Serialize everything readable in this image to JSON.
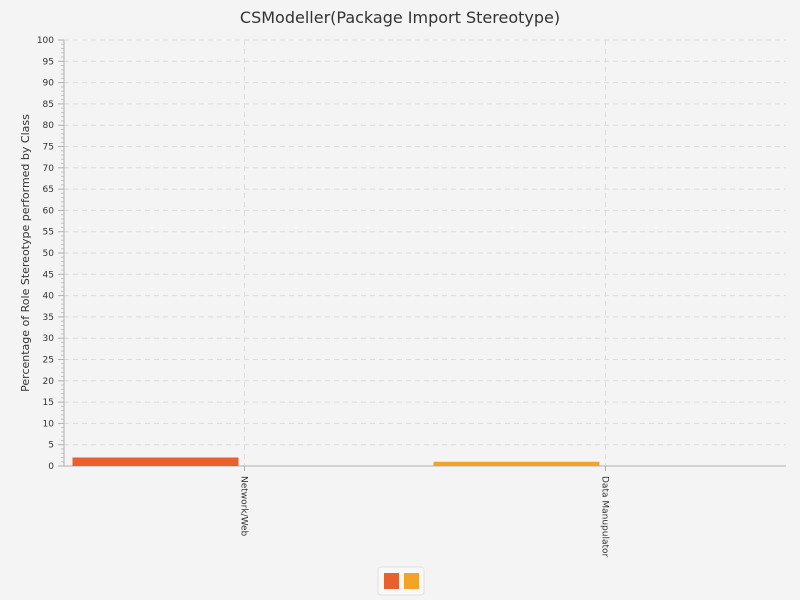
{
  "chart_data": {
    "type": "bar",
    "title": "CSModeller(Package Import Stereotype)",
    "xlabel": "",
    "ylabel": "Percentage of Role Stereotype performed by Class",
    "ylim": [
      0,
      100
    ],
    "ytick_step": 5,
    "yticks": [
      "0",
      "5",
      "10",
      "15",
      "20",
      "25",
      "30",
      "35",
      "40",
      "45",
      "50",
      "55",
      "60",
      "65",
      "70",
      "75",
      "80",
      "85",
      "90",
      "95",
      "100"
    ],
    "grid": true,
    "categories": [
      "Network/Web",
      "Data Manupulator"
    ],
    "values": [
      2.0,
      1.0
    ],
    "colors": [
      "#e8602c",
      "#f3a326"
    ],
    "legend": {
      "placement": "bottom-center",
      "swatch_colors": [
        "#e8602c",
        "#f3a326"
      ]
    }
  }
}
